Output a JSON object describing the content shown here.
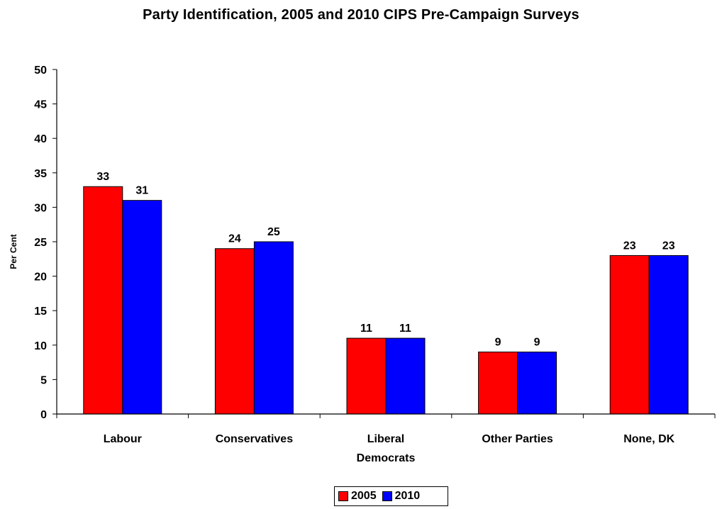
{
  "chart_data": {
    "type": "bar",
    "title": "Party Identification, 2005 and 2010 CIPS Pre-Campaign Surveys",
    "ylabel": "Per Cent",
    "xlabel": "",
    "ylim": [
      0,
      50
    ],
    "ytick_step": 5,
    "yticks": [
      "0",
      "5",
      "10",
      "15",
      "20",
      "25",
      "30",
      "35",
      "40",
      "45",
      "50"
    ],
    "categories": [
      [
        "Labour"
      ],
      [
        "Conservatives"
      ],
      [
        "Liberal",
        "Democrats"
      ],
      [
        "Other Parties"
      ],
      [
        "None, DK"
      ]
    ],
    "series": [
      {
        "name": "2005",
        "color": "#ff0000",
        "values": [
          33,
          24,
          11,
          9,
          23
        ]
      },
      {
        "name": "2010",
        "color": "#0000ff",
        "values": [
          31,
          25,
          11,
          9,
          23
        ]
      }
    ],
    "data_labels": true,
    "grid": false,
    "legend_position": "bottom-center"
  }
}
